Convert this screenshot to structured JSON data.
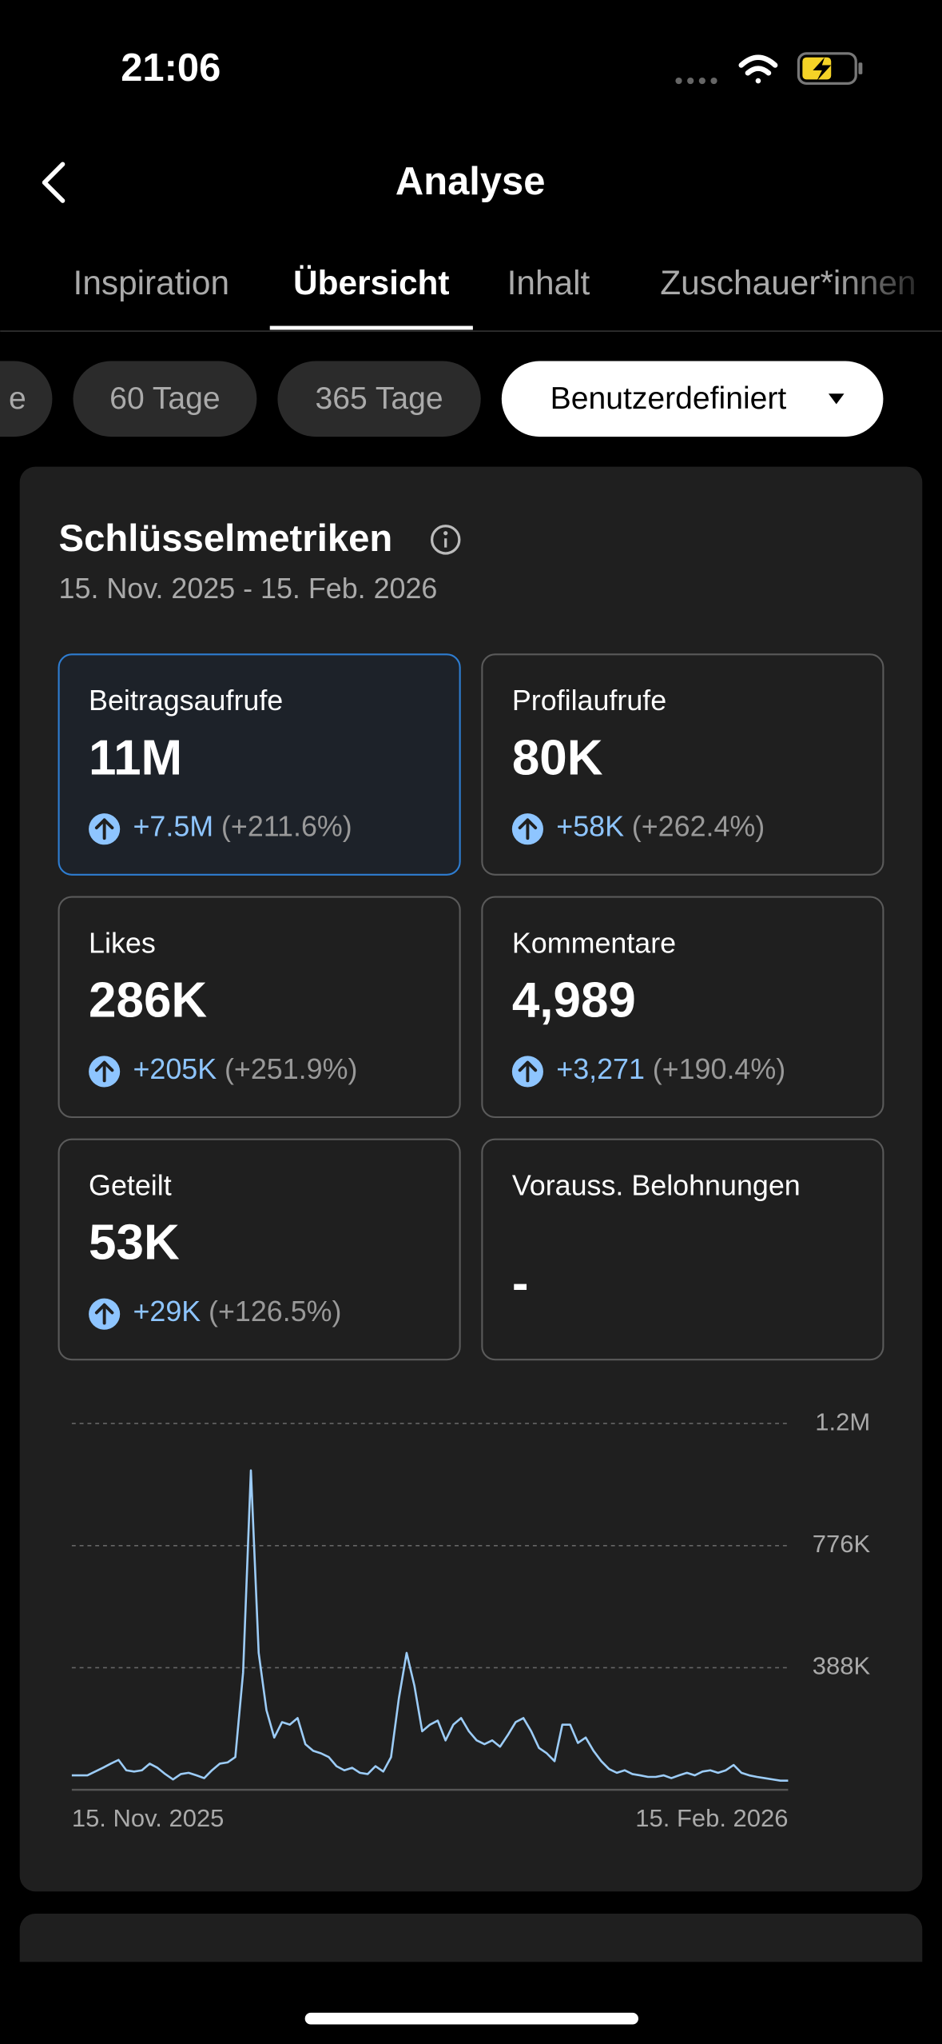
{
  "status_bar": {
    "time": "21:06"
  },
  "header": {
    "title": "Analyse"
  },
  "tabs": [
    "Inspiration",
    "Übersicht",
    "Inhalt",
    "Zuschauer*innen"
  ],
  "active_tab": 1,
  "period_chips": [
    "e",
    "60 Tage",
    "365 Tage"
  ],
  "selected_range": "Benutzerdefiniert",
  "card": {
    "title": "Schlüsselmetriken",
    "date_range": "15. Nov. 2025 - 15. Feb. 2026"
  },
  "metrics": [
    {
      "label": "Beitragsaufrufe",
      "value": "11M",
      "change": "+7.5M",
      "change_pct": "(+211.6%)"
    },
    {
      "label": "Profilaufrufe",
      "value": "80K",
      "change": "+58K",
      "change_pct": "(+262.4%)"
    },
    {
      "label": "Likes",
      "value": "286K",
      "change": "+205K",
      "change_pct": "(+251.9%)"
    },
    {
      "label": "Kommentare",
      "value": "4,989",
      "change": "+3,271",
      "change_pct": "(+190.4%)"
    },
    {
      "label": "Geteilt",
      "value": "53K",
      "change": "+29K",
      "change_pct": "(+126.5%)"
    },
    {
      "label": "Vorauss. Belohnungen",
      "value": "-"
    }
  ],
  "selected_metric": 0,
  "chart_data": {
    "type": "line",
    "color": "#9cccf7",
    "categories": [
      "15. Nov. 2025",
      null,
      null,
      null,
      null,
      null,
      null,
      null,
      null,
      null,
      null,
      null,
      null,
      null,
      null,
      null,
      null,
      null,
      null,
      null,
      null,
      null,
      null,
      null,
      null,
      null,
      null,
      null,
      null,
      null,
      null,
      null,
      null,
      null,
      null,
      null,
      null,
      null,
      null,
      null,
      null,
      null,
      null,
      null,
      null,
      null,
      null,
      null,
      null,
      null,
      null,
      null,
      null,
      null,
      null,
      null,
      null,
      null,
      null,
      null,
      null,
      null,
      null,
      null,
      null,
      null,
      null,
      null,
      null,
      null,
      null,
      null,
      null,
      null,
      null,
      null,
      null,
      null,
      null,
      null,
      null,
      null,
      null,
      null,
      null,
      null,
      null,
      null,
      null,
      null,
      null,
      null,
      "15. Feb. 2026"
    ],
    "values": [
      46000,
      46000,
      46000,
      58000,
      70000,
      83000,
      95000,
      62000,
      58000,
      62000,
      83000,
      70000,
      50000,
      33000,
      50000,
      54000,
      46000,
      37000,
      62000,
      83000,
      87000,
      104000,
      373000,
      1015000,
      435000,
      253000,
      166000,
      215000,
      207000,
      228000,
      145000,
      124000,
      116000,
      104000,
      75000,
      62000,
      70000,
      54000,
      50000,
      75000,
      58000,
      104000,
      290000,
      435000,
      331000,
      186000,
      207000,
      220000,
      157000,
      207000,
      228000,
      186000,
      157000,
      145000,
      157000,
      137000,
      174000,
      215000,
      228000,
      186000,
      133000,
      116000,
      91000,
      207000,
      207000,
      149000,
      166000,
      124000,
      91000,
      66000,
      54000,
      62000,
      50000,
      46000,
      41000,
      41000,
      46000,
      37000,
      46000,
      54000,
      46000,
      58000,
      62000,
      54000,
      62000,
      79000,
      54000,
      46000,
      41000,
      37000,
      33000,
      29000,
      29000
    ],
    "ylim": [
      0,
      1164000
    ],
    "yticks": [
      {
        "value": 388000,
        "label": "388K"
      },
      {
        "value": 776000,
        "label": "776K"
      },
      {
        "value": 1164000,
        "label": "1.2M"
      }
    ],
    "grid": true
  }
}
